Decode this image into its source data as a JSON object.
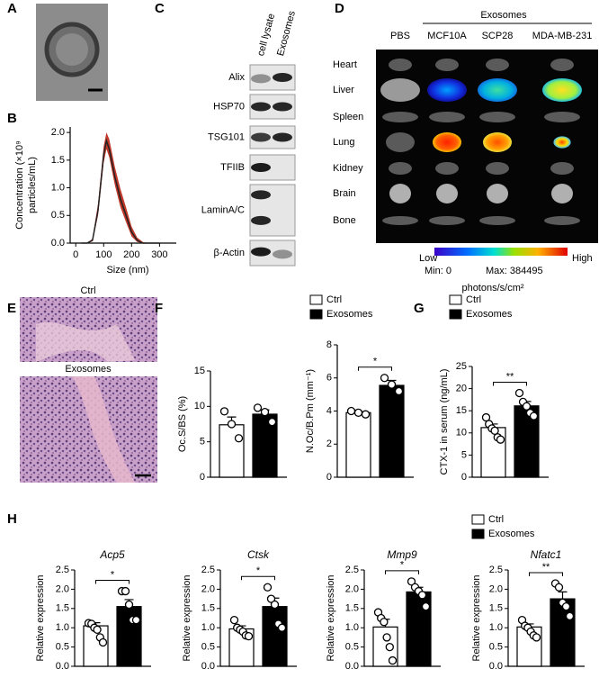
{
  "panel_labels": [
    "A",
    "B",
    "C",
    "D",
    "E",
    "F",
    "G",
    "H"
  ],
  "blot": {
    "columns": [
      "cell lysate",
      "Exosomes"
    ],
    "rows": [
      "Alix",
      "HSP70",
      "TSG101",
      "TFIIB",
      "LaminA/C",
      "β-Actin"
    ]
  },
  "imaging": {
    "group_label": "Exosomes",
    "columns": [
      "PBS",
      "MCF10A",
      "SCP28",
      "MDA-MB-231"
    ],
    "rows": [
      "Heart",
      "Liver",
      "Spleen",
      "Lung",
      "Kidney",
      "Brain",
      "Bone"
    ],
    "scale_low": "Low",
    "scale_high": "High",
    "min": "Min: 0",
    "max": "Max: 384495",
    "unit": "photons/s/cm²"
  },
  "histology": {
    "labels": [
      "Ctrl",
      "Exosomes"
    ]
  },
  "chart_data": [
    {
      "type": "line",
      "xlabel": "Size (nm)",
      "ylabel": [
        "Concentration (×10⁹",
        "particles/mL)"
      ],
      "x": [
        20,
        40,
        60,
        80,
        100,
        110,
        120,
        140,
        160,
        180,
        200,
        220,
        240,
        260,
        280,
        300
      ],
      "series": [
        {
          "color": "#222222",
          "values": [
            0,
            0,
            0.05,
            0.6,
            1.6,
            1.85,
            1.7,
            1.2,
            0.8,
            0.5,
            0.2,
            0.05,
            0,
            0,
            0,
            0
          ],
          "band_low": [
            0,
            0,
            0.03,
            0.5,
            1.45,
            1.7,
            1.55,
            1.05,
            0.65,
            0.38,
            0.12,
            0.02,
            0,
            0,
            0,
            0
          ],
          "band_high": [
            0,
            0,
            0.08,
            0.72,
            1.75,
            2.0,
            1.88,
            1.38,
            0.98,
            0.65,
            0.3,
            0.1,
            0.02,
            0,
            0,
            0
          ],
          "band_color": "#c0392b"
        }
      ],
      "xlim": [
        -20,
        360
      ],
      "xticks": [
        0,
        100,
        200,
        300
      ],
      "ylim": [
        0,
        2.1
      ],
      "yticks": [
        {
          "value": 0,
          "label": "0.0"
        },
        0.5,
        {
          "value": 1,
          "label": "1.0"
        },
        1.5,
        {
          "value": 2,
          "label": "2.0"
        }
      ]
    },
    {
      "type": "bar",
      "ylabel": "Oc.S/BS (%)",
      "ylim": [
        0,
        15
      ],
      "yticks": [
        0,
        5,
        10,
        15
      ],
      "annotations": [],
      "series": [
        {
          "color": "#ffffff",
          "values": [
            7.4
          ],
          "errors": [
            1.1
          ],
          "points": [
            [
              9.3,
              7.5,
              5.5
            ]
          ]
        },
        {
          "color": "#000000",
          "values": [
            8.9
          ],
          "errors": [
            0.6
          ],
          "points": [
            [
              9.8,
              9.2,
              7.8
            ]
          ]
        }
      ]
    },
    {
      "type": "bar",
      "ylabel": "N.Oc/B.Pm (mm⁻¹)",
      "ylim": [
        0,
        8
      ],
      "yticks": [
        0,
        2,
        4,
        6,
        8
      ],
      "annotations": [
        "*"
      ],
      "series": [
        {
          "name": "Ctrl",
          "color": "#ffffff",
          "values": [
            3.9
          ],
          "errors": [
            0.06
          ],
          "points": [
            [
              4.0,
              3.9,
              3.8
            ]
          ]
        },
        {
          "name": "Exosomes",
          "color": "#000000",
          "values": [
            5.55
          ],
          "errors": [
            0.3
          ],
          "points": [
            [
              6.0,
              5.6,
              5.2
            ]
          ]
        }
      ]
    },
    {
      "type": "bar",
      "ylabel": "CTX-1 in serum (ng/mL)",
      "ylim": [
        0,
        25
      ],
      "yticks": [
        0,
        5,
        10,
        15,
        20,
        25
      ],
      "annotations": [
        "**"
      ],
      "series": [
        {
          "name": "Ctrl",
          "color": "#ffffff",
          "values": [
            11.2
          ],
          "errors": [
            0.8
          ],
          "points": [
            [
              13.5,
              12,
              11,
              10.5,
              9,
              8.5
            ]
          ]
        },
        {
          "name": "Exosomes",
          "color": "#000000",
          "values": [
            16.1
          ],
          "errors": [
            1.0
          ],
          "points": [
            [
              19,
              17,
              16,
              14.5,
              13.8
            ]
          ]
        }
      ]
    },
    {
      "type": "bar",
      "title": "Acp5",
      "ylabel": "Relative expression",
      "ylim": [
        0,
        2.5
      ],
      "yticks": [
        {
          "value": 0,
          "label": "0.0"
        },
        0.5,
        {
          "value": 1,
          "label": "1.0"
        },
        1.5,
        {
          "value": 2,
          "label": "2.0"
        },
        2.5
      ],
      "annotations": [
        "*"
      ],
      "series": [
        {
          "color": "#ffffff",
          "values": [
            1.05
          ],
          "errors": [
            0.08
          ],
          "points": [
            [
              1.12,
              1.1,
              1.0,
              0.95,
              0.75,
              0.62
            ]
          ]
        },
        {
          "color": "#000000",
          "values": [
            1.55
          ],
          "errors": [
            0.18
          ],
          "points": [
            [
              1.95,
              1.95,
              1.6,
              1.2,
              1.2
            ]
          ]
        }
      ]
    },
    {
      "type": "bar",
      "title": "Ctsk",
      "ylabel": "Relative expression",
      "ylim": [
        0,
        2.5
      ],
      "yticks": [
        {
          "value": 0,
          "label": "0.0"
        },
        0.5,
        {
          "value": 1,
          "label": "1.0"
        },
        1.5,
        {
          "value": 2,
          "label": "2.0"
        },
        2.5
      ],
      "annotations": [
        "*"
      ],
      "series": [
        {
          "color": "#ffffff",
          "values": [
            0.97
          ],
          "errors": [
            0.08
          ],
          "points": [
            [
              1.2,
              1.0,
              0.95,
              0.9,
              0.8,
              0.78
            ]
          ]
        },
        {
          "color": "#000000",
          "values": [
            1.55
          ],
          "errors": [
            0.22
          ],
          "points": [
            [
              2.05,
              1.75,
              1.6,
              1.1,
              1.0
            ]
          ]
        }
      ]
    },
    {
      "type": "bar",
      "title": "Mmp9",
      "ylabel": "Relative expression",
      "ylim": [
        0,
        2.5
      ],
      "yticks": [
        {
          "value": 0,
          "label": "0.0"
        },
        0.5,
        {
          "value": 1,
          "label": "1.0"
        },
        1.5,
        {
          "value": 2,
          "label": "2.0"
        },
        2.5
      ],
      "annotations": [
        "*"
      ],
      "series": [
        {
          "color": "#ffffff",
          "values": [
            1.02
          ],
          "errors": [
            0.2
          ],
          "points": [
            [
              1.4,
              1.25,
              1.15,
              0.75,
              0.5,
              0.15
            ]
          ]
        },
        {
          "color": "#000000",
          "values": [
            1.93
          ],
          "errors": [
            0.12
          ],
          "points": [
            [
              2.2,
              2.05,
              1.95,
              1.85,
              1.55
            ]
          ]
        }
      ]
    },
    {
      "type": "bar",
      "title": "Nfatc1",
      "ylabel": "Relative expression",
      "ylim": [
        0,
        2.5
      ],
      "yticks": [
        {
          "value": 0,
          "label": "0.0"
        },
        0.5,
        {
          "value": 1,
          "label": "1.0"
        },
        1.5,
        {
          "value": 2,
          "label": "2.0"
        },
        2.5
      ],
      "annotations": [
        "**"
      ],
      "series": [
        {
          "name": "Ctrl",
          "color": "#ffffff",
          "values": [
            1.02
          ],
          "errors": [
            0.08
          ],
          "points": [
            [
              1.2,
              1.05,
              1.0,
              0.9,
              0.8,
              0.75
            ]
          ]
        },
        {
          "name": "Exosomes",
          "color": "#000000",
          "values": [
            1.75
          ],
          "errors": [
            0.18
          ],
          "points": [
            [
              2.15,
              2.05,
              1.65,
              1.55,
              1.3
            ]
          ]
        }
      ]
    }
  ]
}
